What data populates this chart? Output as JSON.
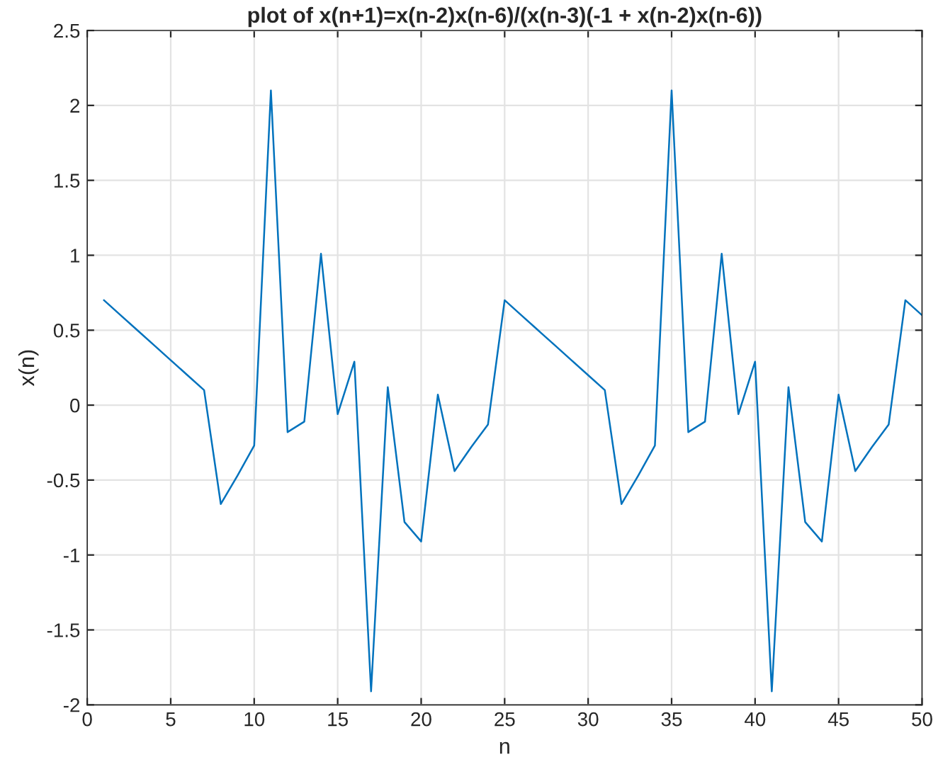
{
  "chart_data": {
    "type": "line",
    "title": "plot of x(n+1)=x(n-2)x(n-6)/(x(n-3)(-1 + x(n-2)x(n-6))",
    "xlabel": "n",
    "ylabel": "x(n)",
    "x": [
      1,
      2,
      3,
      4,
      5,
      6,
      7,
      8,
      9,
      10,
      11,
      12,
      13,
      14,
      15,
      16,
      17,
      18,
      19,
      20,
      21,
      22,
      23,
      24,
      25,
      26,
      27,
      28,
      29,
      30,
      31,
      32,
      33,
      34,
      35,
      36,
      37,
      38,
      39,
      40,
      41,
      42,
      43,
      44,
      45,
      46,
      47,
      48,
      49,
      50
    ],
    "series": [
      {
        "color": "#0072bd",
        "values": [
          0.7,
          0.6,
          0.5,
          0.4,
          0.3,
          0.2,
          0.1,
          -0.66,
          -0.47,
          -0.27,
          2.1,
          -0.18,
          -0.11,
          1.01,
          -0.06,
          0.29,
          -1.91,
          0.12,
          -0.78,
          -0.91,
          0.07,
          -0.44,
          -0.28,
          -0.13,
          0.7,
          0.6,
          0.5,
          0.4,
          0.3,
          0.2,
          0.1,
          -0.66,
          -0.47,
          -0.27,
          2.1,
          -0.18,
          -0.11,
          1.01,
          -0.06,
          0.29,
          -1.91,
          0.12,
          -0.78,
          -0.91,
          0.07,
          -0.44,
          -0.28,
          -0.13,
          0.7,
          0.6
        ]
      }
    ],
    "xlim": [
      0,
      50
    ],
    "xticks": [
      0,
      5,
      10,
      15,
      20,
      25,
      30,
      35,
      40,
      45,
      50
    ],
    "ylim": [
      -2,
      2.5
    ],
    "yticks": [
      -2,
      -1.5,
      -1,
      -0.5,
      0,
      0.5,
      1,
      1.5,
      2,
      2.5
    ],
    "grid": true
  }
}
